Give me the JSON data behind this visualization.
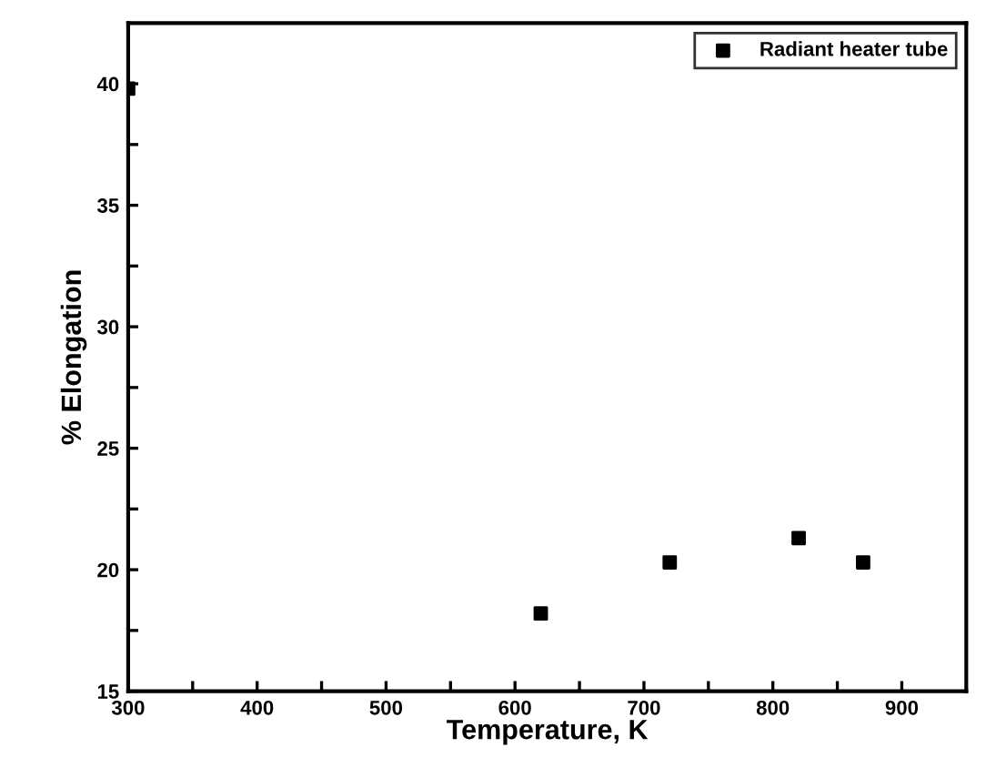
{
  "chart_data": {
    "type": "scatter",
    "xlabel": "Temperature, K",
    "ylabel": "% Elongation",
    "x": [
      300,
      620,
      720,
      820,
      870
    ],
    "series": [
      {
        "name": "Radiant heater tube",
        "color": "#000000",
        "values": [
          39.8,
          18.2,
          20.3,
          21.3,
          20.3
        ]
      }
    ],
    "xlim": [
      300,
      950
    ],
    "ylim": [
      15,
      42.5
    ],
    "xticks": [
      300,
      {
        "value": 350,
        "label": null
      },
      400,
      {
        "value": 450,
        "label": null
      },
      500,
      {
        "value": 550,
        "label": null
      },
      600,
      {
        "value": 650,
        "label": null
      },
      700,
      {
        "value": 750,
        "label": null
      },
      800,
      {
        "value": 850,
        "label": null
      },
      900
    ],
    "yticks": [
      15,
      {
        "value": 17.5,
        "label": null
      },
      20,
      {
        "value": 22.5,
        "label": null
      },
      25,
      {
        "value": 27.5,
        "label": null
      },
      30,
      {
        "value": 32.5,
        "label": null
      },
      35,
      {
        "value": 37.5,
        "label": null
      },
      40
    ],
    "marker": "square",
    "legend": "top right",
    "grid": false
  }
}
